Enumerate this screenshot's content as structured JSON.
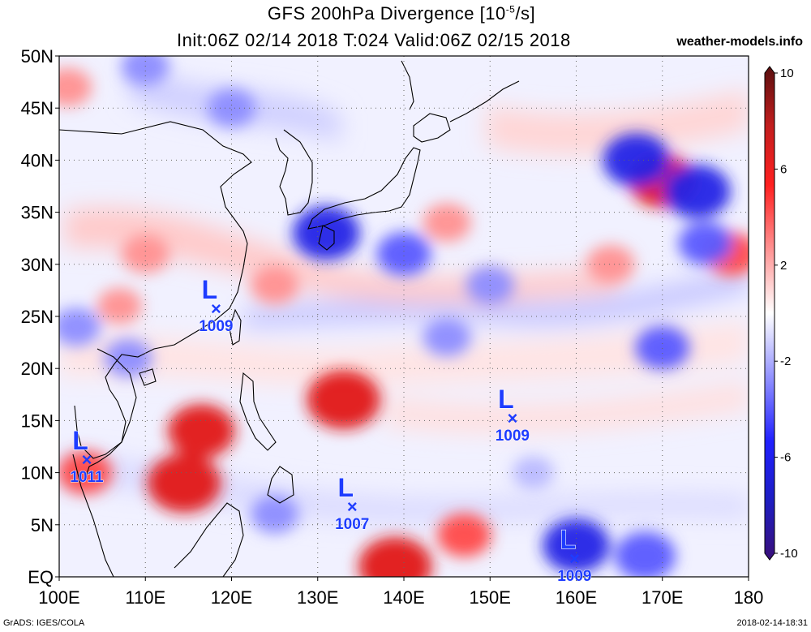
{
  "title": {
    "line1_pre": "GFS 200hPa Divergence [10",
    "line1_sup": "-5",
    "line1_post": "/s]",
    "line2": "Init:06Z 02/14 2018 T:024 Valid:06Z 02/15 2018"
  },
  "site": "weather-models.info",
  "footer": {
    "left": "GrADS: IGES/COLA",
    "right": "2018-02-14-18:31"
  },
  "map": {
    "lon_range": [
      100,
      180
    ],
    "lat_range": [
      0,
      50
    ],
    "lon_labels": [
      "100E",
      "110E",
      "120E",
      "130E",
      "140E",
      "150E",
      "160E",
      "170E",
      "180"
    ],
    "lat_labels": [
      "EQ",
      "5N",
      "10N",
      "15N",
      "20N",
      "25N",
      "30N",
      "35N",
      "40N",
      "45N",
      "50N"
    ]
  },
  "colorbar": {
    "labels": [
      "10",
      "6",
      "2",
      "-2",
      "-6",
      "-10"
    ],
    "colors": [
      "#5a0f0f",
      "#c21e1e",
      "#ff2020",
      "#ff8a8a",
      "#ffd6d6",
      "#ffffff",
      "#d6d6ff",
      "#8a8aff",
      "#2020ff",
      "#1e1ec2",
      "#3a0f7a"
    ]
  },
  "pressure_systems": [
    {
      "symbol": "L",
      "value": "1009",
      "lon": 118.2,
      "lat": 25.7
    },
    {
      "symbol": "L",
      "value": "1011",
      "lon": 103.2,
      "lat": 11.2
    },
    {
      "symbol": "L",
      "value": "1009",
      "lon": 152.6,
      "lat": 15.2
    },
    {
      "symbol": "L",
      "value": "1007",
      "lon": 134.0,
      "lat": 6.7
    },
    {
      "symbol": "L",
      "value": "1009",
      "lon": 159.8,
      "lat": 1.7
    }
  ],
  "field_blobs": [
    {
      "lon": 114.5,
      "lat": 9,
      "v": 7
    },
    {
      "lon": 116.5,
      "lat": 14,
      "v": 6
    },
    {
      "lon": 133,
      "lat": 17,
      "v": 7
    },
    {
      "lon": 110,
      "lat": 31,
      "v": 3
    },
    {
      "lon": 107,
      "lat": 26,
      "v": 2.5
    },
    {
      "lon": 125,
      "lat": 28,
      "v": 3
    },
    {
      "lon": 145,
      "lat": 34,
      "v": 3
    },
    {
      "lon": 170,
      "lat": 38,
      "v": 6
    },
    {
      "lon": 164,
      "lat": 30,
      "v": 3
    },
    {
      "lon": 178,
      "lat": 31,
      "v": 4
    },
    {
      "lon": 101,
      "lat": 47,
      "v": 3
    },
    {
      "lon": 139,
      "lat": 1,
      "v": 7
    },
    {
      "lon": 147,
      "lat": 4,
      "v": 4
    },
    {
      "lon": 103,
      "lat": 10,
      "v": 4
    },
    {
      "lon": 131,
      "lat": 33,
      "v": -6
    },
    {
      "lon": 140,
      "lat": 31,
      "v": -4
    },
    {
      "lon": 167,
      "lat": 40,
      "v": -6
    },
    {
      "lon": 174,
      "lat": 37,
      "v": -6
    },
    {
      "lon": 175,
      "lat": 32,
      "v": -4
    },
    {
      "lon": 150,
      "lat": 28,
      "v": -3
    },
    {
      "lon": 145,
      "lat": 23,
      "v": -3
    },
    {
      "lon": 170,
      "lat": 22,
      "v": -4
    },
    {
      "lon": 160,
      "lat": 3,
      "v": -6
    },
    {
      "lon": 168,
      "lat": 2,
      "v": -5
    },
    {
      "lon": 125,
      "lat": 6,
      "v": -3
    },
    {
      "lon": 108,
      "lat": 21,
      "v": -3
    },
    {
      "lon": 120,
      "lat": 45,
      "v": -3
    },
    {
      "lon": 110,
      "lat": 49,
      "v": -3
    },
    {
      "lon": 155,
      "lat": 10,
      "v": -2
    },
    {
      "lon": 102,
      "lat": 24,
      "v": -3
    }
  ]
}
